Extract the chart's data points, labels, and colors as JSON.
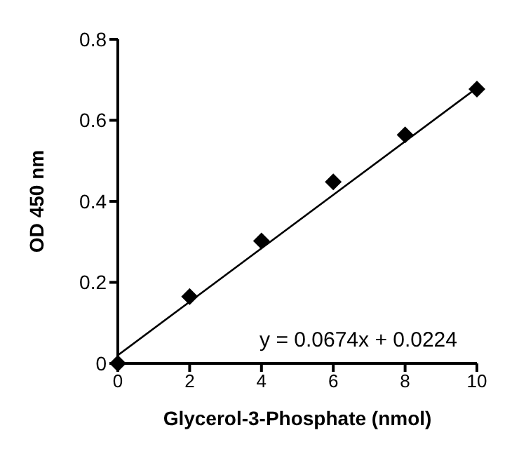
{
  "chart_data": {
    "type": "scatter",
    "xlabel": "Glycerol-3-Phosphate (nmol)",
    "ylabel": "OD 450 nm",
    "series": [
      {
        "color": "#000000",
        "x": [
          0,
          2,
          4,
          6,
          8,
          10
        ],
        "values": [
          0,
          0.165,
          0.302,
          0.448,
          0.564,
          0.677
        ],
        "marker": "diamond"
      },
      {
        "type": "line",
        "color": "#000000",
        "x": [
          0,
          10
        ],
        "values": [
          0.02,
          0.68
        ],
        "marker": "none",
        "line_style": "solid"
      }
    ],
    "xlim": [
      0,
      10
    ],
    "xticks": [
      0,
      2,
      4,
      6,
      8,
      10
    ],
    "ylim": [
      0,
      0.8
    ],
    "yticks": [
      0,
      0.2,
      0.4,
      0.6,
      0.8
    ],
    "grid": false,
    "legend": false,
    "annotations": [
      "y = 0.0674x + 0.0224"
    ]
  }
}
